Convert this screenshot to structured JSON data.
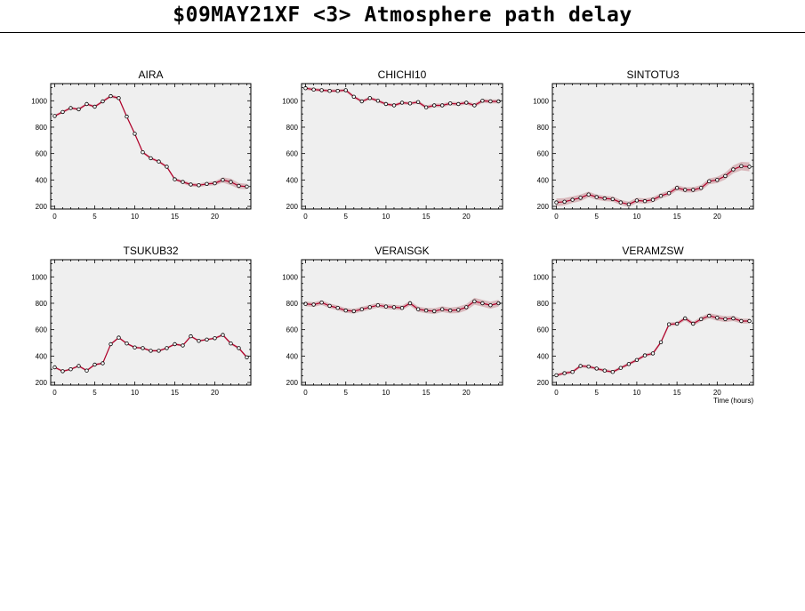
{
  "title": "$09MAY21XF <3>  Atmosphere path delay",
  "colors": {
    "line": "#b0002a",
    "band": "#d9b8bc",
    "plot_bg": "#efefef",
    "frame": "#000000"
  },
  "chart_data": [
    {
      "type": "line",
      "title": "AIRA",
      "xlabel": "",
      "xlim": [
        -0.5,
        24.5
      ],
      "ylim": [
        180,
        1130
      ],
      "xticks": [
        0,
        5,
        10,
        15,
        20
      ],
      "yticks": [
        200,
        400,
        600,
        800,
        1000
      ],
      "x": [
        0,
        1,
        2,
        3,
        4,
        5,
        6,
        7,
        8,
        9,
        10,
        11,
        12,
        13,
        14,
        15,
        16,
        17,
        18,
        19,
        20,
        21,
        22,
        23,
        24
      ],
      "values": [
        885,
        915,
        945,
        935,
        975,
        955,
        995,
        1035,
        1020,
        880,
        750,
        610,
        565,
        540,
        500,
        405,
        385,
        365,
        360,
        370,
        375,
        400,
        385,
        355,
        350
      ],
      "band": [
        10,
        10,
        10,
        10,
        10,
        10,
        10,
        12,
        12,
        10,
        10,
        10,
        10,
        10,
        10,
        10,
        12,
        14,
        14,
        14,
        16,
        20,
        25,
        22,
        20
      ]
    },
    {
      "type": "line",
      "title": "CHICHI10",
      "xlabel": "",
      "xlim": [
        -0.5,
        24.5
      ],
      "ylim": [
        180,
        1130
      ],
      "xticks": [
        0,
        5,
        10,
        15,
        20
      ],
      "yticks": [
        200,
        400,
        600,
        800,
        1000
      ],
      "x": [
        0,
        1,
        2,
        3,
        4,
        5,
        6,
        7,
        8,
        9,
        10,
        11,
        12,
        13,
        14,
        15,
        16,
        17,
        18,
        19,
        20,
        21,
        22,
        23,
        24
      ],
      "values": [
        1095,
        1085,
        1080,
        1075,
        1075,
        1080,
        1030,
        995,
        1020,
        1000,
        975,
        965,
        985,
        980,
        990,
        950,
        965,
        965,
        980,
        975,
        985,
        965,
        1000,
        995,
        995
      ],
      "band": [
        12,
        12,
        12,
        12,
        12,
        12,
        12,
        12,
        12,
        12,
        12,
        12,
        12,
        12,
        12,
        14,
        14,
        14,
        14,
        14,
        14,
        14,
        15,
        15,
        15
      ]
    },
    {
      "type": "line",
      "title": "SINTOTU3",
      "xlabel": "",
      "xlim": [
        -0.5,
        24.5
      ],
      "ylim": [
        180,
        1130
      ],
      "xticks": [
        0,
        5,
        10,
        15,
        20
      ],
      "yticks": [
        200,
        400,
        600,
        800,
        1000
      ],
      "x": [
        0,
        1,
        2,
        3,
        4,
        5,
        6,
        7,
        8,
        9,
        10,
        11,
        12,
        13,
        14,
        15,
        16,
        17,
        18,
        19,
        20,
        21,
        22,
        23,
        24
      ],
      "values": [
        230,
        235,
        250,
        265,
        290,
        270,
        260,
        255,
        230,
        215,
        245,
        240,
        250,
        280,
        300,
        340,
        325,
        325,
        340,
        390,
        400,
        430,
        480,
        505,
        500
      ],
      "band": [
        30,
        28,
        25,
        25,
        22,
        20,
        20,
        20,
        20,
        20,
        20,
        20,
        20,
        20,
        20,
        20,
        20,
        20,
        22,
        22,
        24,
        26,
        30,
        32,
        34
      ]
    },
    {
      "type": "line",
      "title": "TSUKUB32",
      "xlabel": "",
      "xlim": [
        -0.5,
        24.5
      ],
      "ylim": [
        180,
        1130
      ],
      "xticks": [
        0,
        5,
        10,
        15,
        20
      ],
      "yticks": [
        200,
        400,
        600,
        800,
        1000
      ],
      "x": [
        0,
        1,
        2,
        3,
        4,
        5,
        6,
        7,
        8,
        9,
        10,
        11,
        12,
        13,
        14,
        15,
        16,
        17,
        18,
        19,
        20,
        21,
        22,
        23,
        24
      ],
      "values": [
        315,
        285,
        300,
        325,
        290,
        335,
        345,
        490,
        540,
        495,
        465,
        460,
        440,
        440,
        460,
        490,
        480,
        550,
        515,
        525,
        535,
        560,
        495,
        460,
        390
      ],
      "band": [
        8,
        8,
        8,
        8,
        8,
        8,
        8,
        8,
        8,
        8,
        8,
        8,
        8,
        8,
        8,
        8,
        8,
        8,
        8,
        8,
        8,
        10,
        10,
        10,
        10
      ]
    },
    {
      "type": "line",
      "title": "VERAISGK",
      "xlabel": "",
      "xlim": [
        -0.5,
        24.5
      ],
      "ylim": [
        180,
        1130
      ],
      "xticks": [
        0,
        5,
        10,
        15,
        20
      ],
      "yticks": [
        200,
        400,
        600,
        800,
        1000
      ],
      "x": [
        0,
        1,
        2,
        3,
        4,
        5,
        6,
        7,
        8,
        9,
        10,
        11,
        12,
        13,
        14,
        15,
        16,
        17,
        18,
        19,
        20,
        21,
        22,
        23,
        24
      ],
      "values": [
        795,
        790,
        805,
        780,
        765,
        745,
        740,
        755,
        770,
        785,
        775,
        770,
        765,
        800,
        755,
        745,
        740,
        755,
        745,
        750,
        770,
        815,
        800,
        785,
        800
      ],
      "band": [
        18,
        18,
        18,
        18,
        18,
        18,
        18,
        18,
        18,
        18,
        18,
        18,
        18,
        18,
        20,
        20,
        22,
        22,
        22,
        24,
        24,
        26,
        26,
        26,
        26
      ]
    },
    {
      "type": "line",
      "title": "VERAMZSW",
      "xlabel": "Time (hours)",
      "xlim": [
        -0.5,
        24.5
      ],
      "ylim": [
        180,
        1130
      ],
      "xticks": [
        0,
        5,
        10,
        15,
        20
      ],
      "yticks": [
        200,
        400,
        600,
        800,
        1000
      ],
      "x": [
        0,
        1,
        2,
        3,
        4,
        5,
        6,
        7,
        8,
        9,
        10,
        11,
        12,
        13,
        14,
        15,
        16,
        17,
        18,
        19,
        20,
        21,
        22,
        23,
        24
      ],
      "values": [
        255,
        270,
        280,
        325,
        320,
        305,
        290,
        280,
        310,
        340,
        370,
        405,
        420,
        505,
        640,
        645,
        685,
        645,
        680,
        705,
        690,
        680,
        685,
        665,
        665
      ],
      "band": [
        12,
        12,
        12,
        12,
        12,
        12,
        12,
        12,
        12,
        12,
        12,
        12,
        12,
        12,
        14,
        14,
        16,
        16,
        18,
        20,
        22,
        22,
        20,
        18,
        18
      ]
    }
  ]
}
